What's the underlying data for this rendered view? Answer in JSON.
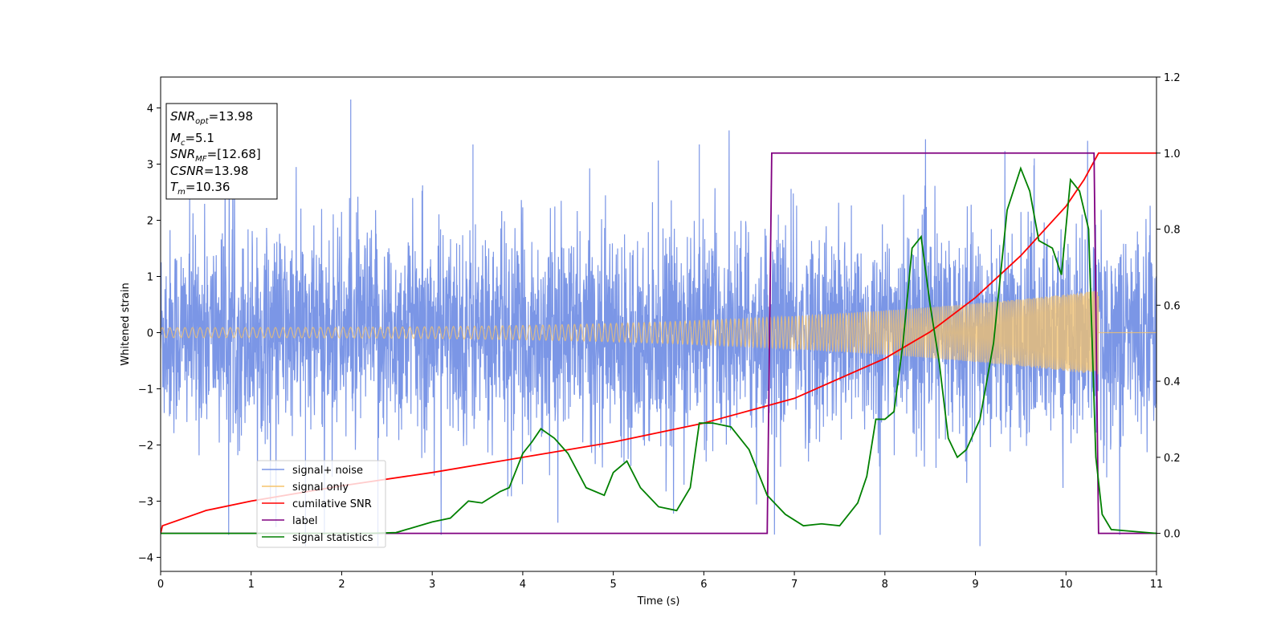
{
  "chart_data": {
    "type": "line",
    "xlabel": "Time (s)",
    "ylabel": "Whitened strain",
    "xlim": [
      0,
      11
    ],
    "ylim_left": [
      -4.25,
      4.55
    ],
    "ylim_right": [
      -0.1,
      1.2
    ],
    "x_ticks": [
      0,
      1,
      2,
      3,
      4,
      5,
      6,
      7,
      8,
      9,
      10,
      11
    ],
    "y_ticks_left": [
      -4,
      -3,
      -2,
      -1,
      0,
      1,
      2,
      3,
      4
    ],
    "y_ticks_right": [
      0.0,
      0.2,
      0.4,
      0.6,
      0.8,
      1.0,
      1.2
    ],
    "legend_placement": "lower-left",
    "info_box": {
      "snr_opt": {
        "base": "SNR",
        "sub": "opt",
        "value": "=13.98"
      },
      "mc": {
        "base": "M",
        "sub": "c",
        "value": "=5.1"
      },
      "snr_mf": {
        "base": "SNR",
        "sub": "MF",
        "value": "=[12.68]"
      },
      "csnr": {
        "base": "CSNR",
        "sub": "",
        "value": "=13.98"
      },
      "tm": {
        "base": "T",
        "sub": "m",
        "value": "=10.36"
      }
    },
    "series": [
      {
        "name": "signal+ noise",
        "axis": "left",
        "color": "#7b96e6",
        "noise_sigma": 0.9,
        "peak_extremes": [
          [
            2.1,
            4.15
          ],
          [
            3.45,
            3.35
          ],
          [
            5.95,
            3.35
          ],
          [
            9.05,
            -3.8
          ],
          [
            9.65,
            3.1
          ],
          [
            1.6,
            -3.8
          ],
          [
            2.4,
            -3.8
          ]
        ]
      },
      {
        "name": "signal only",
        "axis": "left",
        "color": "#f5c36b",
        "chirp": {
          "t_merge": 10.36,
          "amp_start": 0.09,
          "amp_end": 0.75,
          "f_start": 12,
          "f_end": 80
        }
      },
      {
        "name": "cumilative SNR",
        "axis": "right",
        "color": "#ff0000",
        "points": [
          [
            0,
            0.0
          ],
          [
            0.02,
            0.02
          ],
          [
            0.5,
            0.06
          ],
          [
            1,
            0.085
          ],
          [
            2,
            0.125
          ],
          [
            3,
            0.16
          ],
          [
            4,
            0.2
          ],
          [
            5,
            0.24
          ],
          [
            6,
            0.29
          ],
          [
            7,
            0.355
          ],
          [
            8,
            0.46
          ],
          [
            8.5,
            0.53
          ],
          [
            9,
            0.62
          ],
          [
            9.5,
            0.73
          ],
          [
            10,
            0.86
          ],
          [
            10.2,
            0.93
          ],
          [
            10.36,
            1.0
          ],
          [
            11,
            1.0
          ]
        ]
      },
      {
        "name": "label",
        "axis": "right",
        "color": "#800080",
        "points": [
          [
            0,
            0
          ],
          [
            6.7,
            0
          ],
          [
            6.75,
            1
          ],
          [
            10.31,
            1
          ],
          [
            10.36,
            0
          ],
          [
            11,
            0
          ]
        ]
      },
      {
        "name": "signal statistics",
        "axis": "right",
        "color": "#008000",
        "points": [
          [
            0,
            0.0
          ],
          [
            2.3,
            0.0
          ],
          [
            2.6,
            0.002
          ],
          [
            3.0,
            0.03
          ],
          [
            3.2,
            0.04
          ],
          [
            3.4,
            0.085
          ],
          [
            3.55,
            0.08
          ],
          [
            3.75,
            0.11
          ],
          [
            3.85,
            0.12
          ],
          [
            4.0,
            0.21
          ],
          [
            4.1,
            0.24
          ],
          [
            4.2,
            0.275
          ],
          [
            4.35,
            0.25
          ],
          [
            4.5,
            0.21
          ],
          [
            4.7,
            0.12
          ],
          [
            4.9,
            0.1
          ],
          [
            5.0,
            0.16
          ],
          [
            5.15,
            0.19
          ],
          [
            5.3,
            0.12
          ],
          [
            5.5,
            0.07
          ],
          [
            5.7,
            0.06
          ],
          [
            5.85,
            0.12
          ],
          [
            5.95,
            0.29
          ],
          [
            6.1,
            0.29
          ],
          [
            6.3,
            0.28
          ],
          [
            6.5,
            0.22
          ],
          [
            6.7,
            0.1
          ],
          [
            6.9,
            0.05
          ],
          [
            7.1,
            0.02
          ],
          [
            7.3,
            0.025
          ],
          [
            7.5,
            0.02
          ],
          [
            7.7,
            0.08
          ],
          [
            7.8,
            0.15
          ],
          [
            7.9,
            0.3
          ],
          [
            8.0,
            0.3
          ],
          [
            8.1,
            0.32
          ],
          [
            8.2,
            0.5
          ],
          [
            8.3,
            0.75
          ],
          [
            8.4,
            0.78
          ],
          [
            8.5,
            0.6
          ],
          [
            8.6,
            0.45
          ],
          [
            8.7,
            0.25
          ],
          [
            8.8,
            0.2
          ],
          [
            8.9,
            0.22
          ],
          [
            9.05,
            0.3
          ],
          [
            9.2,
            0.5
          ],
          [
            9.35,
            0.85
          ],
          [
            9.5,
            0.96
          ],
          [
            9.6,
            0.9
          ],
          [
            9.7,
            0.77
          ],
          [
            9.85,
            0.75
          ],
          [
            9.95,
            0.68
          ],
          [
            10.05,
            0.93
          ],
          [
            10.15,
            0.9
          ],
          [
            10.25,
            0.8
          ],
          [
            10.33,
            0.2
          ],
          [
            10.4,
            0.05
          ],
          [
            10.5,
            0.01
          ],
          [
            11,
            0.0
          ]
        ]
      }
    ]
  }
}
